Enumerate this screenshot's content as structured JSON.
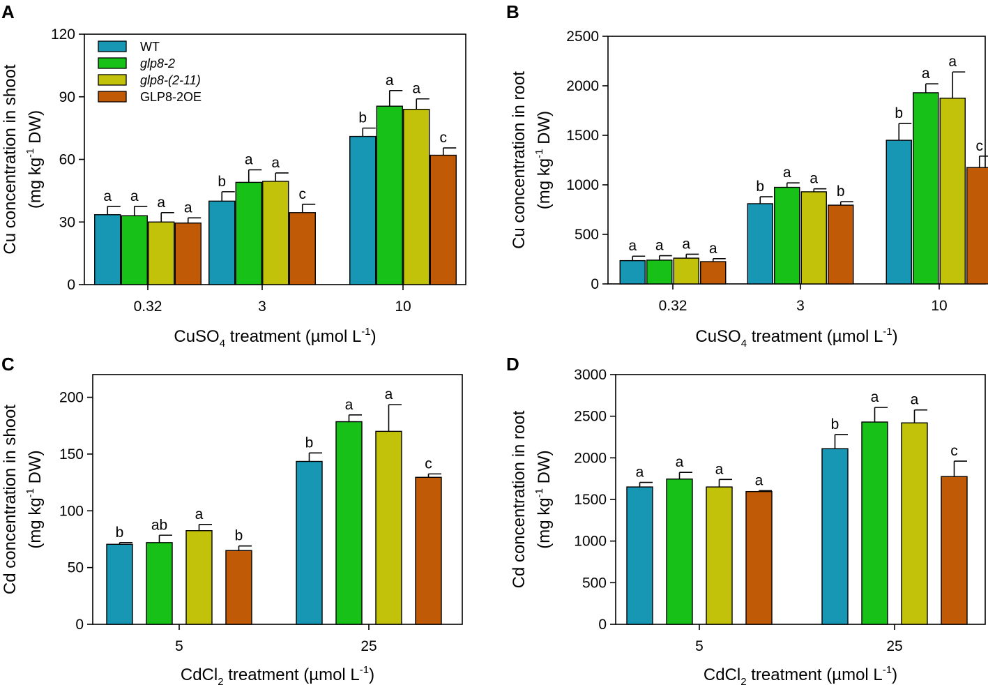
{
  "colors": {
    "WT": "#1797b3",
    "glp8-2": "#17c117",
    "glp8-(2-11)": "#c3c20a",
    "GLP8-2OE": "#c05a06"
  },
  "legend": [
    {
      "key": "WT",
      "label": "WT",
      "italic": false
    },
    {
      "key": "glp8-2",
      "label": "glp8-2",
      "italic": true
    },
    {
      "key": "glp8-(2-11)",
      "label": "glp8-(2-11)",
      "italic": true
    },
    {
      "key": "GLP8-2OE",
      "label": "GLP8-2OE",
      "italic": false
    }
  ],
  "chart_data": [
    {
      "panel": "A",
      "type": "bar",
      "categories": [
        "0.32",
        "3",
        "10"
      ],
      "ylim": [
        0,
        120
      ],
      "yticks": [
        0,
        30,
        60,
        90,
        120
      ],
      "ylabel": {
        "main": "Cu concentration in shoot",
        "unit_pre": "(mg kg",
        "unit_sup": "-1",
        "unit_post": " DW)"
      },
      "xlabel": {
        "pre": "CuSO",
        "sub": "4",
        "mid": " treatment (µmol L",
        "sup": "-1",
        "post": ")"
      },
      "series": [
        {
          "name": "WT",
          "values": [
            33.5,
            40,
            71
          ],
          "errors": [
            4,
            4.5,
            4
          ],
          "letters": [
            "a",
            "b",
            "b"
          ]
        },
        {
          "name": "glp8-2",
          "values": [
            33,
            49,
            85.5
          ],
          "errors": [
            4.5,
            6,
            7.5
          ],
          "letters": [
            "a",
            "a",
            "a"
          ]
        },
        {
          "name": "glp8-(2-11)",
          "values": [
            30,
            49.5,
            84
          ],
          "errors": [
            4.5,
            4,
            5
          ],
          "letters": [
            "a",
            "a",
            "a"
          ]
        },
        {
          "name": "GLP8-2OE",
          "values": [
            29.5,
            34.5,
            62
          ],
          "errors": [
            2.5,
            4,
            3.5
          ],
          "letters": [
            "a",
            "c",
            "c"
          ]
        }
      ]
    },
    {
      "panel": "B",
      "type": "bar",
      "categories": [
        "0.32",
        "3",
        "10"
      ],
      "ylim": [
        0,
        2500
      ],
      "yticks": [
        0,
        500,
        1000,
        1500,
        2000,
        2500
      ],
      "ylabel": {
        "main": "Cu concentration in root",
        "unit_pre": "(mg kg",
        "unit_sup": "-1",
        "unit_post": " DW)"
      },
      "xlabel": {
        "pre": "CuSO",
        "sub": "4",
        "mid": " treatment (µmol L",
        "sup": "-1",
        "post": ")"
      },
      "series": [
        {
          "name": "WT",
          "values": [
            235,
            810,
            1450
          ],
          "errors": [
            45,
            70,
            170
          ],
          "letters": [
            "a",
            "b",
            "b"
          ]
        },
        {
          "name": "glp8-2",
          "values": [
            240,
            975,
            1930
          ],
          "errors": [
            45,
            45,
            90
          ],
          "letters": [
            "a",
            "a",
            "a"
          ]
        },
        {
          "name": "glp8-(2-11)",
          "values": [
            260,
            930,
            1875
          ],
          "errors": [
            40,
            30,
            265
          ],
          "letters": [
            "a",
            "a",
            "a"
          ]
        },
        {
          "name": "GLP8-2OE",
          "values": [
            225,
            795,
            1175
          ],
          "errors": [
            30,
            35,
            115
          ],
          "letters": [
            "a",
            "b",
            "c"
          ]
        }
      ]
    },
    {
      "panel": "C",
      "type": "bar",
      "categories": [
        "5",
        "25"
      ],
      "ylim": [
        0,
        220
      ],
      "yticks": [
        0,
        50,
        100,
        150,
        200
      ],
      "ylabel": {
        "main": "Cd concentration in shoot",
        "unit_pre": "(mg kg",
        "unit_sup": "-1",
        "unit_post": " DW)"
      },
      "xlabel": {
        "pre": "CdCl",
        "sub": "2",
        "mid": " treatment (µmol L",
        "sup": "-1",
        "post": ")"
      },
      "series": [
        {
          "name": "WT",
          "values": [
            70.5,
            143.5
          ],
          "errors": [
            1.5,
            7.5
          ],
          "letters": [
            "b",
            "b"
          ]
        },
        {
          "name": "glp8-2",
          "values": [
            72,
            178.5
          ],
          "errors": [
            6.5,
            6
          ],
          "letters": [
            "ab",
            "a"
          ]
        },
        {
          "name": "glp8-(2-11)",
          "values": [
            82.5,
            170
          ],
          "errors": [
            5.5,
            23.5
          ],
          "letters": [
            "a",
            "a"
          ]
        },
        {
          "name": "GLP8-2OE",
          "values": [
            65,
            129.5
          ],
          "errors": [
            4,
            3
          ],
          "letters": [
            "b",
            "c"
          ]
        }
      ]
    },
    {
      "panel": "D",
      "type": "bar",
      "categories": [
        "5",
        "25"
      ],
      "ylim": [
        0,
        3000
      ],
      "yticks": [
        0,
        500,
        1000,
        1500,
        2000,
        2500,
        3000
      ],
      "ylabel": {
        "main": "Cd concentration in root",
        "unit_pre": "(mg kg",
        "unit_sup": "-1",
        "unit_post": " DW)"
      },
      "xlabel": {
        "pre": "CdCl",
        "sub": "2",
        "mid": " treatment (µmol L",
        "sup": "-1",
        "post": ")"
      },
      "series": [
        {
          "name": "WT",
          "values": [
            1650,
            2110
          ],
          "errors": [
            55,
            170
          ],
          "letters": [
            "a",
            "b"
          ]
        },
        {
          "name": "glp8-2",
          "values": [
            1745,
            2430
          ],
          "errors": [
            80,
            175
          ],
          "letters": [
            "a",
            "a"
          ]
        },
        {
          "name": "glp8-(2-11)",
          "values": [
            1650,
            2420
          ],
          "errors": [
            90,
            155
          ],
          "letters": [
            "a",
            "a"
          ]
        },
        {
          "name": "GLP8-2OE",
          "values": [
            1595,
            1775
          ],
          "errors": [
            10,
            185
          ],
          "letters": [
            "a",
            "c"
          ]
        }
      ]
    }
  ]
}
